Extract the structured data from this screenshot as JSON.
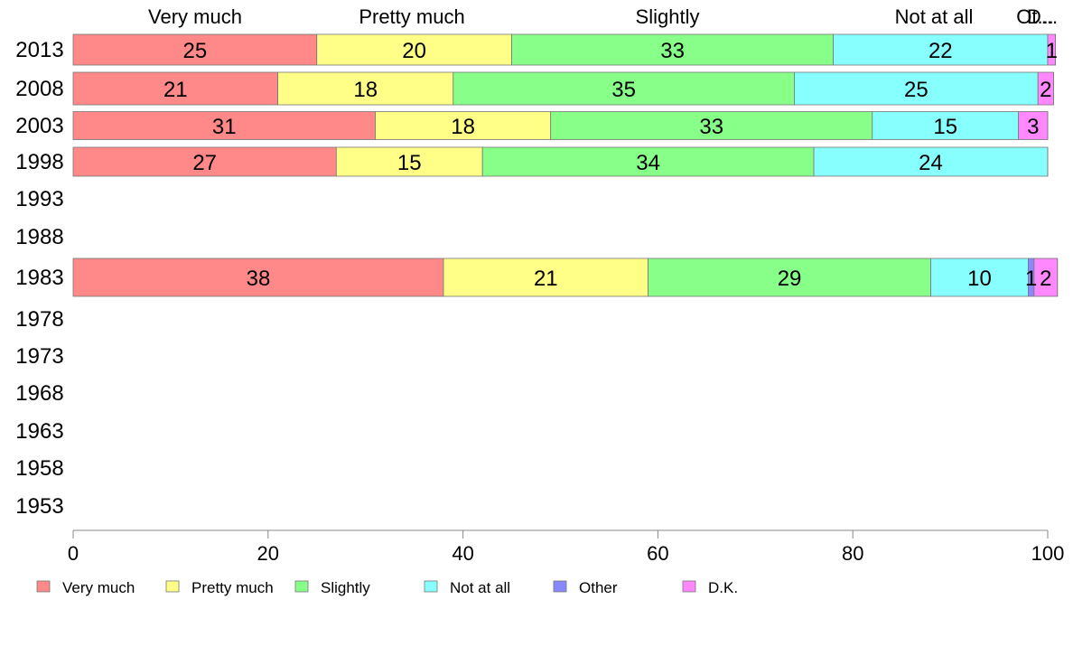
{
  "chart_data": {
    "type": "bar",
    "orientation": "horizontal",
    "stacked": true,
    "categories": [
      "2013",
      "2008",
      "2003",
      "1998",
      "1993",
      "1988",
      "1983",
      "1978",
      "1973",
      "1968",
      "1963",
      "1958",
      "1953"
    ],
    "series": [
      {
        "name": "Very much",
        "color": "#ff8888",
        "values": [
          25,
          21,
          31,
          27,
          null,
          null,
          38,
          null,
          null,
          null,
          null,
          null,
          null
        ],
        "labels": [
          "25",
          "21",
          "31",
          "27",
          "",
          "",
          "38",
          "",
          "",
          "",
          "",
          "",
          ""
        ]
      },
      {
        "name": "Pretty much",
        "color": "#ffff88",
        "values": [
          20,
          18,
          18,
          15,
          null,
          null,
          21,
          null,
          null,
          null,
          null,
          null,
          null
        ],
        "labels": [
          "20",
          "18",
          "18",
          "15",
          "",
          "",
          "21",
          "",
          "",
          "",
          "",
          "",
          ""
        ]
      },
      {
        "name": "Slightly",
        "color": "#88ff88",
        "values": [
          33,
          35,
          33,
          34,
          null,
          null,
          29,
          null,
          null,
          null,
          null,
          null,
          null
        ],
        "labels": [
          "33",
          "35",
          "33",
          "34",
          "",
          "",
          "29",
          "",
          "",
          "",
          "",
          "",
          ""
        ]
      },
      {
        "name": "Not at all",
        "color": "#88ffff",
        "values": [
          22,
          25,
          15,
          24,
          null,
          null,
          10,
          null,
          null,
          null,
          null,
          null,
          null
        ],
        "labels": [
          "22",
          "25",
          "15",
          "24",
          "",
          "",
          "10",
          "",
          "",
          "",
          "",
          "",
          ""
        ]
      },
      {
        "name": "Other",
        "color": "#8888ff",
        "values": [
          0,
          0,
          0,
          0,
          null,
          null,
          0.6,
          null,
          null,
          null,
          null,
          null,
          null
        ],
        "labels": [
          "",
          "",
          "",
          "",
          "",
          "",
          "1",
          "",
          "",
          "",
          "",
          "",
          ""
        ]
      },
      {
        "name": "D.K.",
        "color": "#ff88ff",
        "values": [
          0.8,
          1.6,
          3,
          0,
          null,
          null,
          2.4,
          null,
          null,
          null,
          null,
          null,
          null
        ],
        "labels": [
          "1",
          "2",
          "3",
          "",
          "",
          "",
          "2",
          "",
          "",
          "",
          "",
          "",
          ""
        ]
      }
    ],
    "top_labels": [
      "Very much",
      "Pretty much",
      "Slightly",
      "Not at all",
      "Ot...",
      "D..."
    ],
    "xlim": [
      0,
      100
    ],
    "xticks": [
      "0",
      "20",
      "40",
      "60",
      "80",
      "100"
    ],
    "grid": false,
    "legend_position": "bottom",
    "legend": [
      "Very much",
      "Pretty much",
      "Slightly",
      "Not at all",
      "Other",
      "D.K."
    ]
  }
}
